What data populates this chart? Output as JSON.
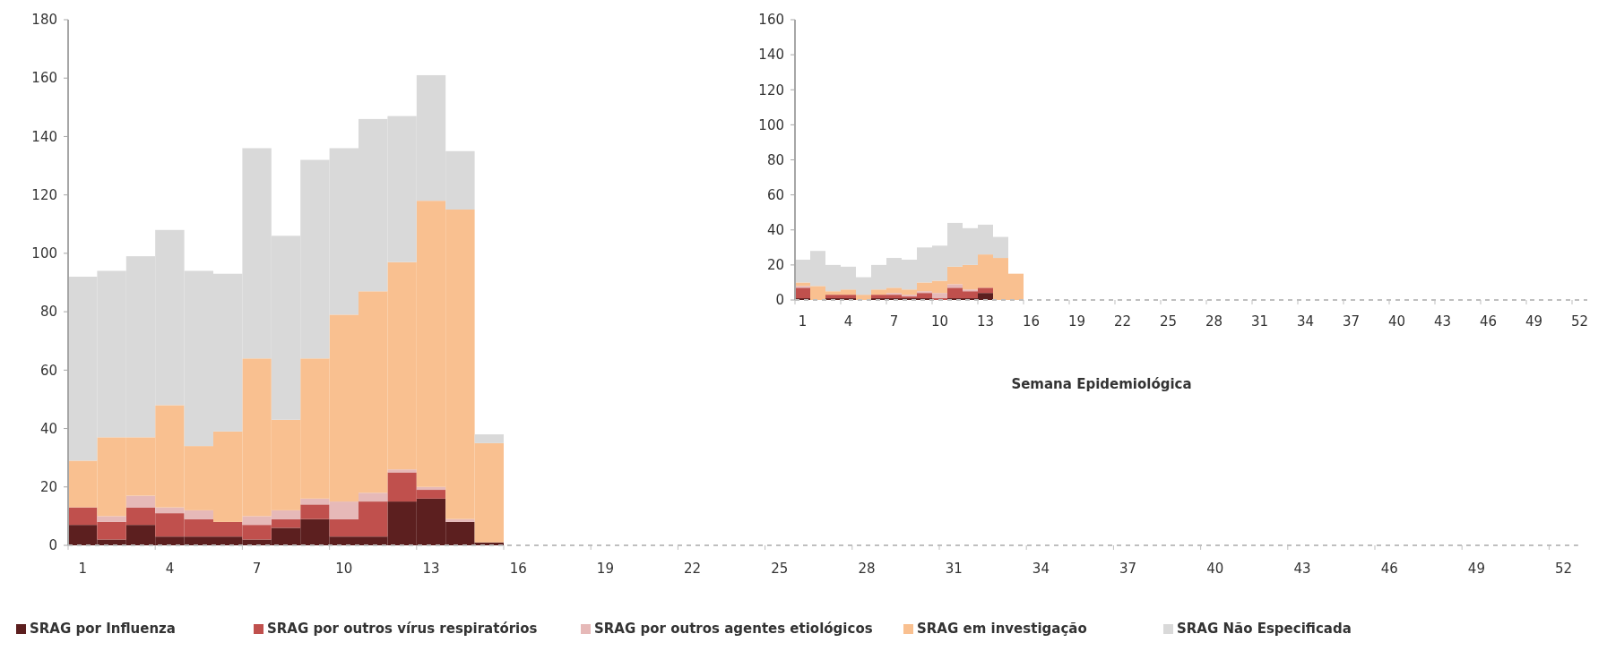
{
  "chart_data": [
    {
      "type": "bar",
      "stacked": true,
      "legend": "bottom",
      "grid": false,
      "ylim": [
        0,
        180
      ],
      "yticks": [
        0,
        20,
        40,
        60,
        80,
        100,
        120,
        140,
        160,
        180
      ],
      "categories": [
        "1",
        null,
        null,
        "4",
        null,
        null,
        "7",
        null,
        null,
        "10",
        null,
        null,
        "13",
        null,
        null,
        "16",
        null,
        null,
        "19",
        null,
        null,
        "22",
        null,
        null,
        "25",
        null,
        null,
        "28",
        null,
        null,
        "31",
        null,
        null,
        "34",
        null,
        null,
        "37",
        null,
        null,
        "40",
        null,
        null,
        "43",
        null,
        null,
        "46",
        null,
        null,
        "49",
        null,
        null,
        "52"
      ],
      "series": [
        {
          "name": "SRAG por Influenza",
          "color": "#5c1f1f",
          "values": [
            7,
            2,
            7,
            3,
            3,
            3,
            2,
            6,
            9,
            3,
            3,
            15,
            16,
            8,
            1,
            null,
            null,
            null,
            null,
            null,
            null,
            null,
            null,
            null,
            null,
            null,
            null,
            null,
            null,
            null,
            null,
            null,
            null,
            null,
            null,
            null,
            null,
            null,
            null,
            null,
            null,
            null,
            null,
            null,
            null,
            null,
            null,
            null,
            null,
            null,
            null,
            null
          ]
        },
        {
          "name": "SRAG por outros vírus respiratórios",
          "color": "#c0504d",
          "values": [
            6,
            6,
            6,
            8,
            6,
            5,
            5,
            3,
            5,
            6,
            12,
            10,
            3,
            0,
            0,
            null,
            null,
            null,
            null,
            null,
            null,
            null,
            null,
            null,
            null,
            null,
            null,
            null,
            null,
            null,
            null,
            null,
            null,
            null,
            null,
            null,
            null,
            null,
            null,
            null,
            null,
            null,
            null,
            null,
            null,
            null,
            null,
            null,
            null,
            null,
            null,
            null
          ]
        },
        {
          "name": "SRAG por outros agentes etiológicos",
          "color": "#e6b9b8",
          "values": [
            0,
            2,
            4,
            2,
            3,
            0,
            3,
            3,
            2,
            6,
            3,
            1,
            1,
            1,
            0,
            null,
            null,
            null,
            null,
            null,
            null,
            null,
            null,
            null,
            null,
            null,
            null,
            null,
            null,
            null,
            null,
            null,
            null,
            null,
            null,
            null,
            null,
            null,
            null,
            null,
            null,
            null,
            null,
            null,
            null,
            null,
            null,
            null,
            null,
            null,
            null,
            null
          ]
        },
        {
          "name": "SRAG em investigação",
          "color": "#f9c090",
          "values": [
            16,
            27,
            20,
            35,
            22,
            31,
            54,
            31,
            48,
            64,
            69,
            71,
            98,
            106,
            34,
            null,
            null,
            null,
            null,
            null,
            null,
            null,
            null,
            null,
            null,
            null,
            null,
            null,
            null,
            null,
            null,
            null,
            null,
            null,
            null,
            null,
            null,
            null,
            null,
            null,
            null,
            null,
            null,
            null,
            null,
            null,
            null,
            null,
            null,
            null,
            null,
            null
          ]
        },
        {
          "name": "SRAG Não Especificada",
          "color": "#d9d9d9",
          "values": [
            63,
            57,
            62,
            60,
            60,
            54,
            72,
            63,
            68,
            57,
            59,
            50,
            43,
            20,
            3,
            null,
            null,
            null,
            null,
            null,
            null,
            null,
            null,
            null,
            null,
            null,
            null,
            null,
            null,
            null,
            null,
            null,
            null,
            null,
            null,
            null,
            null,
            null,
            null,
            null,
            null,
            null,
            null,
            null,
            null,
            null,
            null,
            null,
            null,
            null,
            null,
            null
          ]
        }
      ]
    },
    {
      "type": "bar",
      "stacked": true,
      "grid": false,
      "ylim": [
        0,
        160
      ],
      "yticks": [
        0,
        20,
        40,
        60,
        80,
        100,
        120,
        140,
        160
      ],
      "xlabel": "Semana Epidemiológica",
      "categories": [
        "1",
        null,
        null,
        "4",
        null,
        null,
        "7",
        null,
        null,
        "10",
        null,
        null,
        "13",
        null,
        null,
        "16",
        null,
        null,
        "19",
        null,
        null,
        "22",
        null,
        null,
        "25",
        null,
        null,
        "28",
        null,
        null,
        "31",
        null,
        null,
        "34",
        null,
        null,
        "37",
        null,
        null,
        "40",
        null,
        null,
        "43",
        null,
        null,
        "46",
        null,
        null,
        "49",
        null,
        null,
        "52"
      ],
      "series": [
        {
          "color": "#5c1f1f",
          "values": [
            1,
            0,
            1,
            1,
            0,
            1,
            1,
            1,
            1,
            0,
            1,
            1,
            4,
            0,
            0,
            null,
            null,
            null,
            null,
            null,
            null,
            null,
            null,
            null,
            null,
            null,
            null,
            null,
            null,
            null,
            null,
            null,
            null,
            null,
            null,
            null,
            null,
            null,
            null,
            null,
            null,
            null,
            null,
            null,
            null,
            null,
            null,
            null,
            null,
            null,
            null,
            null
          ]
        },
        {
          "color": "#c0504d",
          "values": [
            6,
            0,
            2,
            2,
            0,
            2,
            2,
            1,
            3,
            1,
            6,
            4,
            3,
            0,
            0,
            null,
            null,
            null,
            null,
            null,
            null,
            null,
            null,
            null,
            null,
            null,
            null,
            null,
            null,
            null,
            null,
            null,
            null,
            null,
            null,
            null,
            null,
            null,
            null,
            null,
            null,
            null,
            null,
            null,
            null,
            null,
            null,
            null,
            null,
            null,
            null,
            null
          ]
        },
        {
          "color": "#e6b9b8",
          "values": [
            1,
            0,
            0,
            0,
            0,
            0,
            1,
            1,
            1,
            3,
            2,
            1,
            0,
            0,
            0,
            null,
            null,
            null,
            null,
            null,
            null,
            null,
            null,
            null,
            null,
            null,
            null,
            null,
            null,
            null,
            null,
            null,
            null,
            null,
            null,
            null,
            null,
            null,
            null,
            null,
            null,
            null,
            null,
            null,
            null,
            null,
            null,
            null,
            null,
            null,
            null,
            null
          ]
        },
        {
          "color": "#f9c090",
          "values": [
            2,
            8,
            2,
            3,
            3,
            3,
            3,
            3,
            5,
            7,
            10,
            14,
            19,
            24,
            15,
            null,
            null,
            null,
            null,
            null,
            null,
            null,
            null,
            null,
            null,
            null,
            null,
            null,
            null,
            null,
            null,
            null,
            null,
            null,
            null,
            null,
            null,
            null,
            null,
            null,
            null,
            null,
            null,
            null,
            null,
            null,
            null,
            null,
            null,
            null,
            null,
            null
          ]
        },
        {
          "color": "#d9d9d9",
          "values": [
            13,
            20,
            15,
            13,
            10,
            14,
            17,
            17,
            20,
            20,
            25,
            21,
            17,
            12,
            0,
            null,
            null,
            null,
            null,
            null,
            null,
            null,
            null,
            null,
            null,
            null,
            null,
            null,
            null,
            null,
            null,
            null,
            null,
            null,
            null,
            null,
            null,
            null,
            null,
            null,
            null,
            null,
            null,
            null,
            null,
            null,
            null,
            null,
            null,
            null,
            null,
            null
          ]
        }
      ]
    }
  ]
}
